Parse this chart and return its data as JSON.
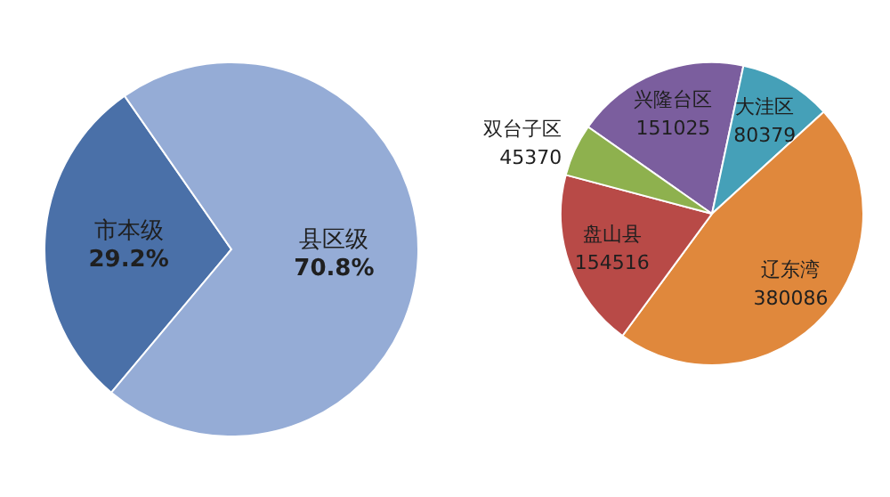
{
  "chart_data": [
    {
      "type": "pie",
      "categories": [
        "市本级",
        "县区级"
      ],
      "values": [
        29.2,
        70.8
      ],
      "colors": [
        "#4a70a8",
        "#95acd6"
      ],
      "value_labels": [
        "29.2%",
        "70.8%"
      ]
    },
    {
      "type": "pie",
      "categories": [
        "兴隆台区",
        "大洼区",
        "辽东湾",
        "盘山县",
        "双台子区"
      ],
      "values": [
        151025,
        80379,
        380086,
        154516,
        45370
      ],
      "colors": [
        "#7b5e9e",
        "#45a0b8",
        "#e0883c",
        "#b84a47",
        "#8eb14e"
      ],
      "data_labels": true
    }
  ]
}
